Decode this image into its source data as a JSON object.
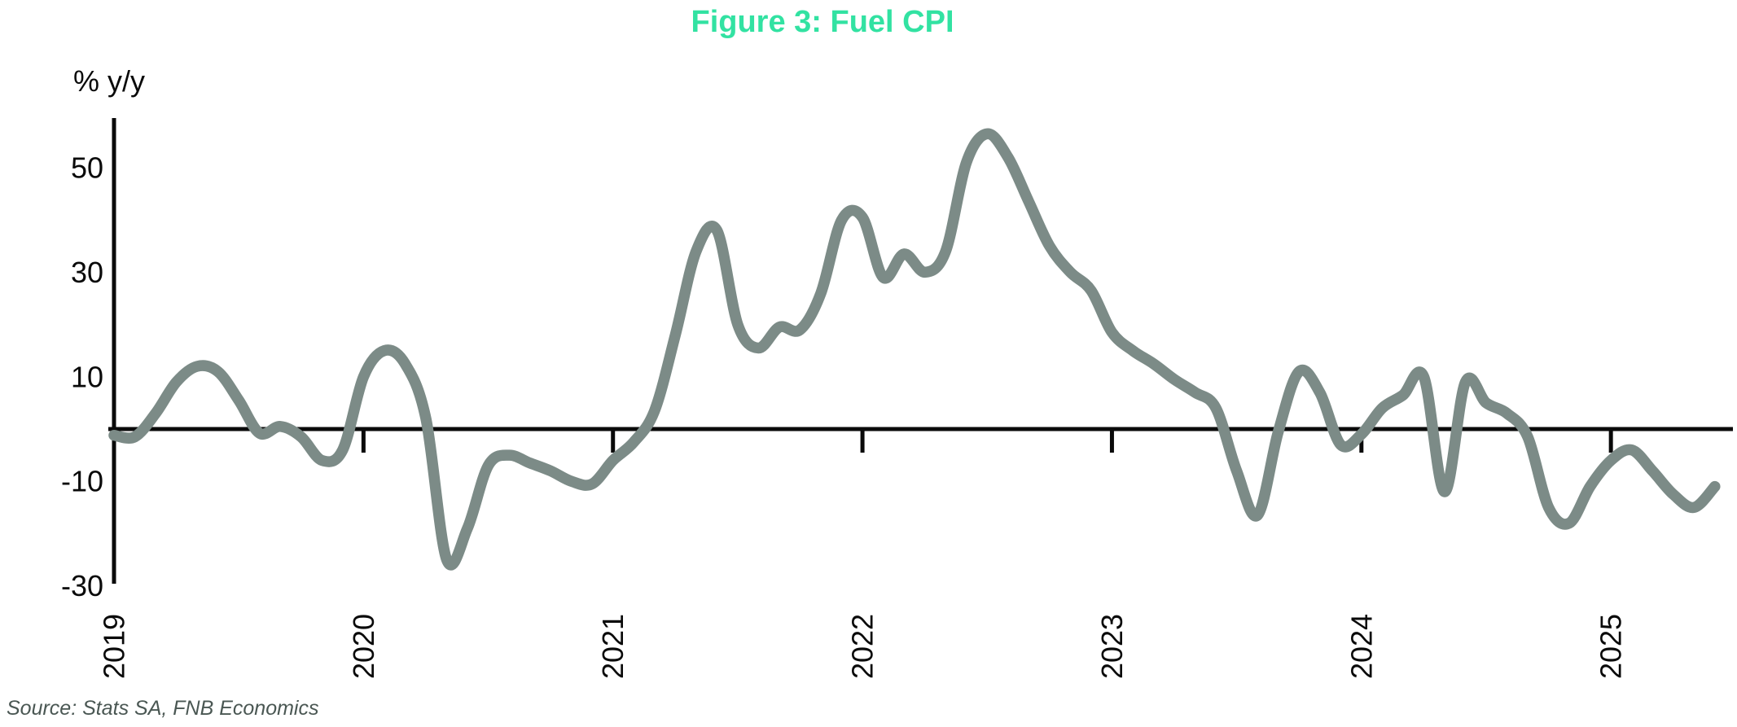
{
  "title": "Figure 3: Fuel CPI",
  "source": "Source: Stats SA, FNB Economics",
  "y_axis": {
    "unit_label": "% y/y",
    "tick_labels": [
      "50",
      "30",
      "10",
      "-10",
      "-30"
    ]
  },
  "x_axis": {
    "year_labels": [
      "2019",
      "2020",
      "2021",
      "2022",
      "2023",
      "2024",
      "2025"
    ]
  },
  "colors": {
    "title_green": "#32e2a2",
    "line_gray": "#7c8b87",
    "axis_black": "#0a0a0a",
    "source_gray": "#4a5753"
  },
  "chart_data": {
    "type": "line",
    "title": "Figure 3: Fuel CPI",
    "ylabel": "% y/y",
    "series_name": "Fuel CPI (% y/y)",
    "ylim": [
      -30,
      60
    ],
    "yticks": [
      50,
      30,
      10,
      -10,
      -30
    ],
    "grid": false,
    "legend_position": "none",
    "x": [
      "2019-01",
      "2019-02",
      "2019-03",
      "2019-04",
      "2019-05",
      "2019-06",
      "2019-07",
      "2019-08",
      "2019-09",
      "2019-10",
      "2019-11",
      "2019-12",
      "2020-01",
      "2020-02",
      "2020-03",
      "2020-04",
      "2020-05",
      "2020-06",
      "2020-07",
      "2020-08",
      "2020-09",
      "2020-10",
      "2020-11",
      "2020-12",
      "2021-01",
      "2021-02",
      "2021-03",
      "2021-04",
      "2021-05",
      "2021-06",
      "2021-07",
      "2021-08",
      "2021-09",
      "2021-10",
      "2021-11",
      "2021-12",
      "2022-01",
      "2022-02",
      "2022-03",
      "2022-04",
      "2022-05",
      "2022-06",
      "2022-07",
      "2022-08",
      "2022-09",
      "2022-10",
      "2022-11",
      "2022-12",
      "2023-01",
      "2023-02",
      "2023-03",
      "2023-04",
      "2023-05",
      "2023-06",
      "2023-07",
      "2023-08",
      "2023-09",
      "2023-10",
      "2023-11",
      "2023-12",
      "2024-01",
      "2024-02",
      "2024-03",
      "2024-04",
      "2024-05",
      "2024-06",
      "2024-07",
      "2024-08",
      "2024-09",
      "2024-10",
      "2024-11",
      "2024-12",
      "2025-01",
      "2025-02",
      "2025-03",
      "2025-04",
      "2025-05",
      "2025-06"
    ],
    "values": [
      -1.2,
      -1.5,
      3,
      9,
      12,
      11,
      5.5,
      -0.8,
      0.5,
      -1.5,
      -6,
      -4,
      10,
      15,
      12.5,
      2,
      -25,
      -19,
      -7,
      -5,
      -6.5,
      -8,
      -10,
      -10.5,
      -6,
      -2.5,
      3.5,
      18,
      34,
      38,
      20,
      15.5,
      19.5,
      19,
      26,
      40,
      40.5,
      29,
      33.5,
      30,
      34,
      51,
      56.5,
      52,
      43.5,
      35,
      30,
      26.5,
      18.5,
      15,
      12.5,
      9.5,
      7,
      4,
      -8,
      -16.5,
      -0.5,
      11,
      7,
      -3,
      -1,
      4,
      6.5,
      10,
      -12,
      9,
      5,
      3,
      -1.5,
      -15,
      -18,
      -11,
      -6,
      -4,
      -8,
      -12.5,
      -15,
      -11
    ]
  }
}
